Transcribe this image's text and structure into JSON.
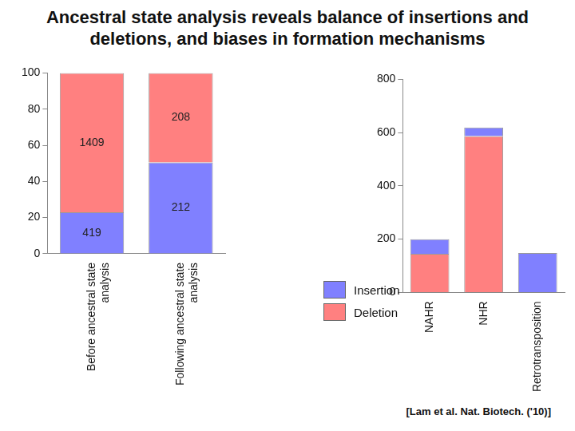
{
  "title": "Ancestral state analysis reveals balance of insertions and deletions, and biases in formation mechanisms",
  "source": "[Lam et al. Nat. Biotech. ('10)]",
  "chart_data": [
    {
      "type": "bar",
      "stacked": true,
      "categories": [
        "Before ancestral state analysis",
        "Following ancestral state analysis"
      ],
      "series": [
        {
          "name": "Insertion",
          "color": "#8080ff",
          "values": [
            22.9,
            50.5
          ],
          "counts": [
            419,
            212
          ]
        },
        {
          "name": "Deletion",
          "color": "#ff8080",
          "values": [
            77.1,
            49.5
          ],
          "counts": [
            1409,
            208
          ]
        }
      ],
      "ylim": [
        0,
        100
      ],
      "yticks": [
        0,
        20,
        40,
        60,
        80,
        100
      ],
      "grid": false
    },
    {
      "type": "bar",
      "stacked": true,
      "categories": [
        "NAHR",
        "NHR",
        "Retrotransposition"
      ],
      "series": [
        {
          "name": "Deletion",
          "color": "#ff8080",
          "values": [
            145,
            587,
            0
          ]
        },
        {
          "name": "Insertion",
          "color": "#8080ff",
          "values": [
            55,
            32,
            148
          ]
        }
      ],
      "ylim": [
        0,
        800
      ],
      "yticks": [
        0,
        200,
        400,
        600,
        800
      ],
      "grid": false,
      "legend": "left"
    }
  ]
}
